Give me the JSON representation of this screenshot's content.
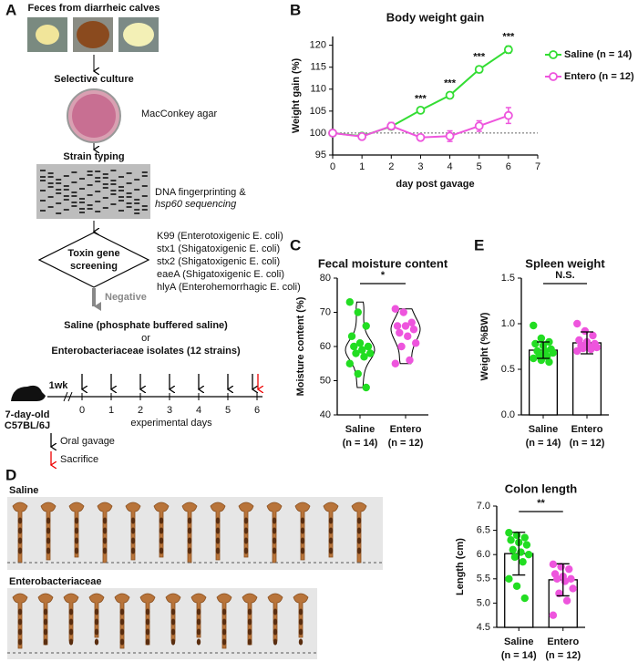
{
  "panel_labels": [
    "A",
    "B",
    "C",
    "D",
    "E"
  ],
  "panel_a": {
    "feces_title": "Feces from diarrheic calves",
    "culture": "Selective culture",
    "agar": "MacConkey agar",
    "typing": "Strain typing",
    "typing_method": [
      "DNA fingerprinting &",
      "hsp60 sequencing"
    ],
    "screening": [
      "Toxin gene",
      "screening"
    ],
    "toxin_genes": [
      "K99 (Enterotoxigenic E. coli)",
      "stx1 (Shigatoxigenic E. coli)",
      "stx2 (Shigatoxigenic E. coli)",
      "eaeA (Shigatoxigenic E. coli)",
      "hlyA (Enterohemorrhagic E. coli)"
    ],
    "negative": "Negative",
    "treatment": [
      "Saline (phosphate buffered saline)",
      "or",
      "Enterobacteriaceae isolates (12 strains)"
    ],
    "mouse": [
      "7-day-old",
      "C57BL/6J"
    ],
    "acclimation": "1wk",
    "days": [
      0,
      1,
      2,
      3,
      4,
      5,
      6
    ],
    "days_label": "experimental days",
    "legend": [
      "Oral gavage",
      "Sacrifice"
    ]
  },
  "panel_d": {
    "groups": [
      "Saline",
      "Enterobacteriaceae"
    ]
  },
  "chart_data": [
    {
      "type": "line",
      "title": "Body weight gain",
      "xlabel": "day post gavage",
      "ylabel": "Weight gain (%)",
      "x": [
        0,
        1,
        2,
        3,
        4,
        5,
        6
      ],
      "xlim": [
        0,
        7
      ],
      "xticks": [
        0,
        1,
        2,
        3,
        4,
        5,
        6,
        7
      ],
      "ylim": [
        95,
        122
      ],
      "yticks": [
        95,
        100,
        105,
        110,
        115,
        120
      ],
      "reference_line": 100,
      "series": [
        {
          "name": "Saline (n = 14)",
          "color": "#33dd33",
          "values": [
            100,
            99.3,
            101.5,
            105.2,
            108.6,
            114.5,
            119
          ],
          "errors": [
            0.4,
            0.4,
            0.6,
            0.5,
            0.6,
            0.7,
            0.8
          ]
        },
        {
          "name": "Entero (n = 12)",
          "color": "#ee55dd",
          "values": [
            100,
            99.2,
            101.6,
            99,
            99.3,
            101.6,
            104
          ],
          "errors": [
            0.4,
            0.4,
            0.8,
            0.5,
            1.2,
            1.2,
            1.8
          ]
        }
      ],
      "annotations": [
        {
          "x": 3,
          "text": "***"
        },
        {
          "x": 4,
          "text": "***"
        },
        {
          "x": 5,
          "text": "***"
        },
        {
          "x": 6,
          "text": "***"
        }
      ],
      "legend": "right"
    },
    {
      "type": "violin",
      "title": "Fecal moisture content",
      "ylabel": "Moisture content (%)",
      "categories": [
        "Saline",
        "Entero"
      ],
      "category_notes": [
        "(n = 14)",
        "(n = 12)"
      ],
      "colors": [
        "#22dd22",
        "#ee55dd"
      ],
      "ylim": [
        40,
        80
      ],
      "yticks": [
        40,
        50,
        60,
        70,
        80
      ],
      "points": [
        [
          73,
          70,
          66,
          63,
          61,
          60,
          60,
          59,
          58,
          58,
          57,
          55,
          52,
          48
        ],
        [
          71,
          70,
          67,
          66,
          66,
          65,
          64,
          63,
          61,
          60,
          56,
          55
        ]
      ],
      "significance": "*"
    },
    {
      "type": "bar",
      "title": "Spleen weight",
      "ylabel": "Weight (%BW)",
      "categories": [
        "Saline",
        "Entero"
      ],
      "category_notes": [
        "(n = 14)",
        "(n = 12)"
      ],
      "colors": [
        "#22dd22",
        "#ee55dd"
      ],
      "ylim": [
        0,
        1.5
      ],
      "yticks": [
        {
          "value": 0,
          "label": "0.0"
        },
        0.5,
        {
          "value": 1,
          "label": "1.0"
        },
        1.5
      ],
      "values": [
        0.71,
        0.79
      ],
      "errors": [
        0.09,
        0.12
      ],
      "points": [
        [
          0.98,
          0.84,
          0.8,
          0.78,
          0.76,
          0.72,
          0.7,
          0.7,
          0.68,
          0.66,
          0.64,
          0.62,
          0.6,
          0.58
        ],
        [
          1.0,
          0.92,
          0.87,
          0.82,
          0.8,
          0.78,
          0.76,
          0.75,
          0.74,
          0.73,
          0.72,
          0.7
        ]
      ],
      "significance": "N.S."
    },
    {
      "type": "bar",
      "title": "Colon length",
      "ylabel": "Length (cm)",
      "categories": [
        "Saline",
        "Entero"
      ],
      "category_notes": [
        "(n = 14)",
        "(n = 12)"
      ],
      "colors": [
        "#22dd22",
        "#ee55dd"
      ],
      "ylim": [
        4.5,
        7
      ],
      "yticks": [
        4.5,
        {
          "value": 5,
          "label": "5.0"
        },
        5.5,
        {
          "value": 6,
          "label": "6.0"
        },
        6.5,
        {
          "value": 7,
          "label": "7.0"
        }
      ],
      "values": [
        6.02,
        5.48
      ],
      "errors": [
        0.44,
        0.33
      ],
      "points": [
        [
          6.45,
          6.4,
          6.35,
          6.3,
          6.25,
          6.2,
          6.1,
          6.05,
          6.0,
          5.95,
          5.85,
          5.5,
          5.35,
          5.1
        ],
        [
          5.8,
          5.75,
          5.7,
          5.6,
          5.55,
          5.5,
          5.5,
          5.45,
          5.3,
          5.2,
          5.05,
          4.75
        ]
      ],
      "significance": "**"
    }
  ]
}
